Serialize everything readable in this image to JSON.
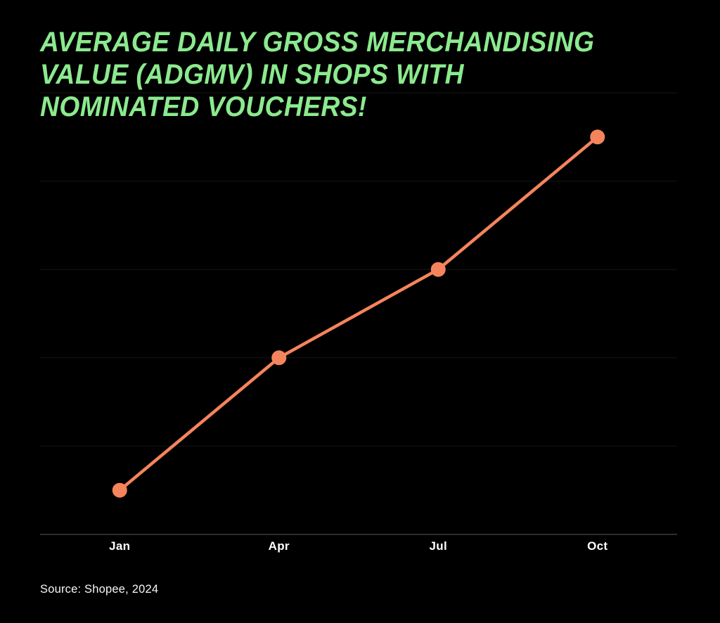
{
  "header": {
    "title_lines": [
      "AVERAGE DAILY GROSS MERCHANDISING",
      "VALUE (ADGMV) IN SHOPS WITH",
      "NOMINATED VOUCHERS!"
    ],
    "title_color": "#8BEA8E"
  },
  "footer": {
    "source": "Source: Shopee, 2024"
  },
  "chart_data": {
    "type": "line",
    "title": "Average Daily Gross Merchandising Value (ADGMV) in shops with nominated vouchers!",
    "categories": [
      "Jan",
      "Apr",
      "Jul",
      "Oct"
    ],
    "values": [
      0.5,
      2,
      3,
      4.5
    ],
    "xlabel": "",
    "ylabel": "",
    "ylim": [
      0,
      5
    ],
    "y_axis_labels_visible": false,
    "grid": true,
    "legend": false,
    "colors": {
      "background": "#000000",
      "line": "#F5845C",
      "point": "#F5845C",
      "gridline": "#161616",
      "baseline": "#2E2E2E",
      "tick_label": "#FFFFFF",
      "source_text": "#F7F7F7"
    }
  }
}
